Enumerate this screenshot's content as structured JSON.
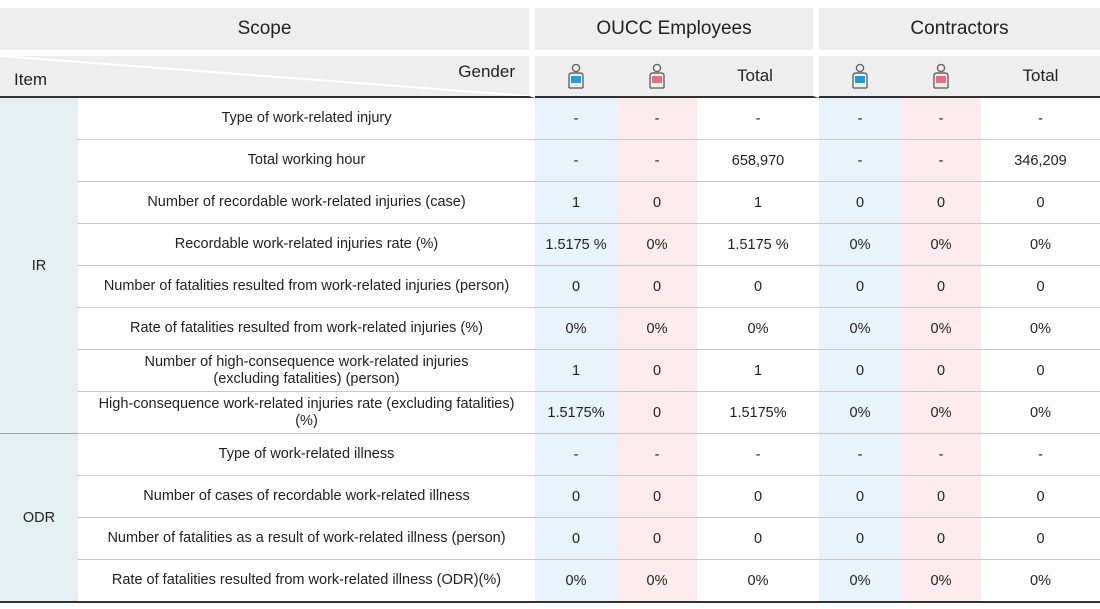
{
  "header": {
    "scope_label": "Scope",
    "group1_label": "OUCC Employees",
    "group2_label": "Contractors",
    "item_label": "Item",
    "gender_label": "Gender",
    "total_label": "Total"
  },
  "colors": {
    "male": "#1aa0d8",
    "female": "#ec6a7c",
    "group_bg": "#e3f1f5"
  },
  "groups": {
    "ir": "IR",
    "odr": "ODR"
  },
  "rows": [
    {
      "label": "Type of work-related injury",
      "emp_m": "-",
      "emp_f": "-",
      "emp_t": "-",
      "con_m": "-",
      "con_f": "-",
      "con_t": "-"
    },
    {
      "label": "Total working hour",
      "emp_m": "-",
      "emp_f": "-",
      "emp_t": "658,970",
      "con_m": "-",
      "con_f": "-",
      "con_t": "346,209"
    },
    {
      "label": "Number of recordable work-related injuries (case)",
      "emp_m": "1",
      "emp_f": "0",
      "emp_t": "1",
      "con_m": "0",
      "con_f": "0",
      "con_t": "0"
    },
    {
      "label": "Recordable work-related injuries rate (%)",
      "emp_m": "1.5175 %",
      "emp_f": "0%",
      "emp_t": "1.5175 %",
      "con_m": "0%",
      "con_f": "0%",
      "con_t": "0%"
    },
    {
      "label": "Number of fatalities resulted from work-related injuries (person)",
      "emp_m": "0",
      "emp_f": "0",
      "emp_t": "0",
      "con_m": "0",
      "con_f": "0",
      "con_t": "0"
    },
    {
      "label": "Rate of fatalities resulted from work-related injuries (%)",
      "emp_m": "0%",
      "emp_f": "0%",
      "emp_t": "0%",
      "con_m": "0%",
      "con_f": "0%",
      "con_t": "0%"
    },
    {
      "label_l1": "Number of high-consequence work-related injuries",
      "label_l2": "(excluding fatalities) (person)",
      "emp_m": "1",
      "emp_f": "0",
      "emp_t": "1",
      "con_m": "0",
      "con_f": "0",
      "con_t": "0"
    },
    {
      "label_l1": "High-consequence work-related injuries rate (excluding fatalities)",
      "label_l2": "(%)",
      "emp_m": "1.5175%",
      "emp_f": "0",
      "emp_t": "1.5175%",
      "con_m": "0%",
      "con_f": "0%",
      "con_t": "0%"
    },
    {
      "label": "Type of work-related illness",
      "emp_m": "-",
      "emp_f": "-",
      "emp_t": "-",
      "con_m": "-",
      "con_f": "-",
      "con_t": "-"
    },
    {
      "label": "Number of cases of recordable work-related illness",
      "emp_m": "0",
      "emp_f": "0",
      "emp_t": "0",
      "con_m": "0",
      "con_f": "0",
      "con_t": "0"
    },
    {
      "label": "Number of fatalities as a result of work-related illness (person)",
      "emp_m": "0",
      "emp_f": "0",
      "emp_t": "0",
      "con_m": "0",
      "con_f": "0",
      "con_t": "0"
    },
    {
      "label": "Rate of fatalities resulted from work-related illness (ODR)(%)",
      "emp_m": "0%",
      "emp_f": "0%",
      "emp_t": "0%",
      "con_m": "0%",
      "con_f": "0%",
      "con_t": "0%"
    }
  ]
}
